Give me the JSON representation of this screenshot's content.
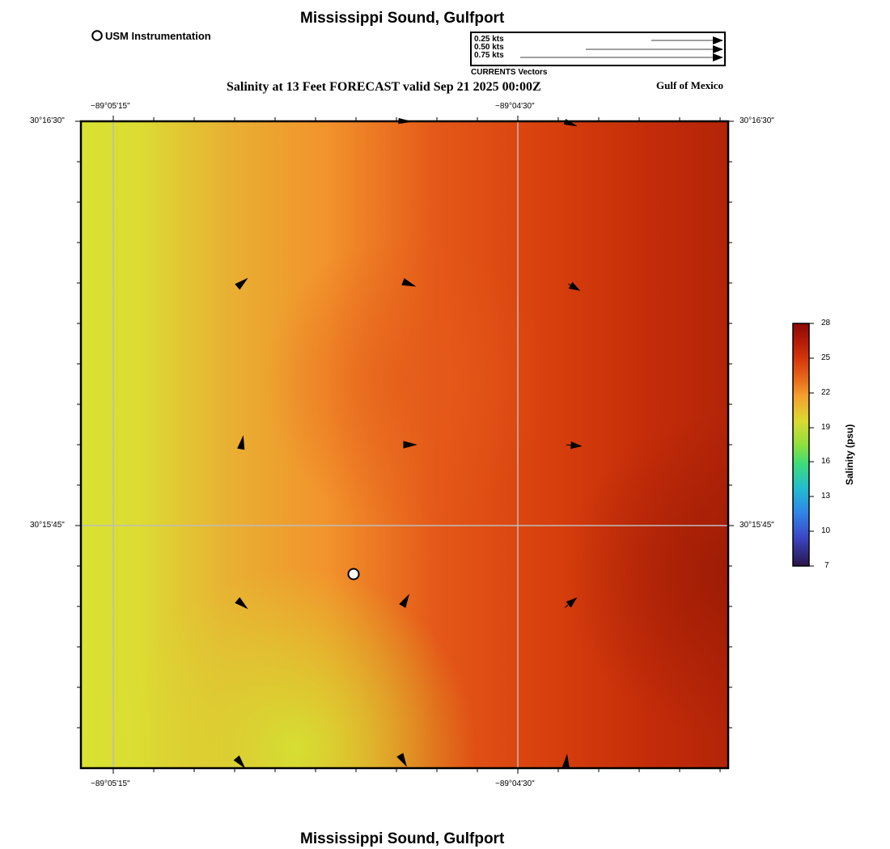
{
  "header": {
    "title": "Mississippi Sound, Gulfport",
    "subtitle": "Salinity at 13 Feet FORECAST valid Sep 21 2025 00:00Z",
    "region": "Gulf of Mexico"
  },
  "footer": {
    "title": "Mississippi Sound, Gulfport"
  },
  "station_legend": {
    "label": "USM Instrumentation"
  },
  "current_legend": {
    "items": [
      "0.25 kts",
      "0.50 kts",
      "0.75 kts"
    ],
    "caption": "CURRENTS Vectors"
  },
  "map": {
    "lon_ticks": [
      "−89°05'15\"",
      "−89°04'30\""
    ],
    "lat_ticks": [
      "30°16'30\"",
      "30°15'45\""
    ],
    "station_marker": "usm-instrumentation-station",
    "vectors_icon": "arrow-icon"
  },
  "colorbar": {
    "label": "Salinity (psu)",
    "ticks": [
      "28",
      "25",
      "22",
      "19",
      "16",
      "13",
      "10",
      "7"
    ],
    "colors": [
      "#8b0a05",
      "#c8260a",
      "#e0450e",
      "#f59a2d",
      "#d4e030",
      "#4fd86a",
      "#1fb3d6",
      "#3f4fcf",
      "#2a1548"
    ]
  }
}
